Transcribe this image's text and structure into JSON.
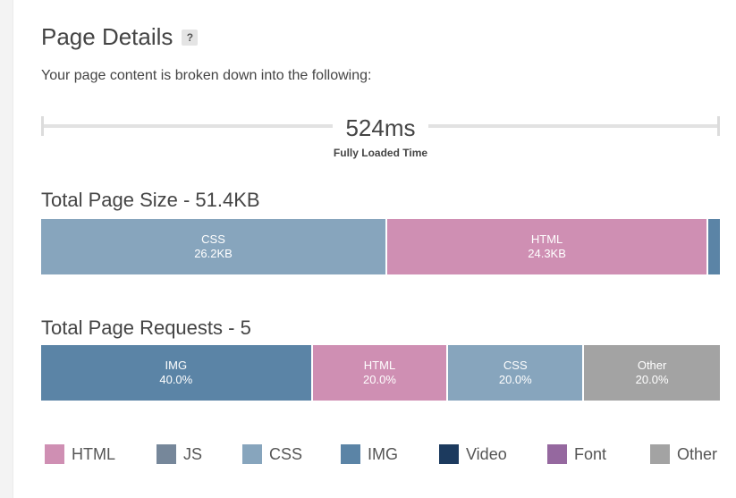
{
  "header": {
    "title": "Page Details",
    "help_label": "?"
  },
  "subtitle": "Your page content is broken down into the following:",
  "timeline": {
    "value": "524ms",
    "label": "Fully Loaded Time"
  },
  "size_section": {
    "title": "Total Page Size - 51.4KB",
    "segments": [
      {
        "label": "CSS",
        "value": "26.2KB",
        "share": 0.51,
        "color": "#87a5bd"
      },
      {
        "label": "HTML",
        "value": "24.3KB",
        "share": 0.473,
        "color": "#cf8fb3"
      },
      {
        "label": "",
        "value": "",
        "share": 0.017,
        "color": "#5b84a6"
      }
    ]
  },
  "requests_section": {
    "title": "Total Page Requests - 5",
    "segments": [
      {
        "label": "IMG",
        "value": "40.0%",
        "share": 0.4,
        "color": "#5b84a6"
      },
      {
        "label": "HTML",
        "value": "20.0%",
        "share": 0.2,
        "color": "#cf8fb3"
      },
      {
        "label": "CSS",
        "value": "20.0%",
        "share": 0.2,
        "color": "#87a5bd"
      },
      {
        "label": "Other",
        "value": "20.0%",
        "share": 0.2,
        "color": "#a3a3a3"
      }
    ]
  },
  "legend": [
    {
      "label": "HTML",
      "color": "#cf8fb3"
    },
    {
      "label": "JS",
      "color": "#76879a"
    },
    {
      "label": "CSS",
      "color": "#87a5bd"
    },
    {
      "label": "IMG",
      "color": "#5b84a6"
    },
    {
      "label": "Video",
      "color": "#1c3a5e"
    },
    {
      "label": "Font",
      "color": "#95689f"
    },
    {
      "label": "Other",
      "color": "#a3a3a3"
    }
  ]
}
